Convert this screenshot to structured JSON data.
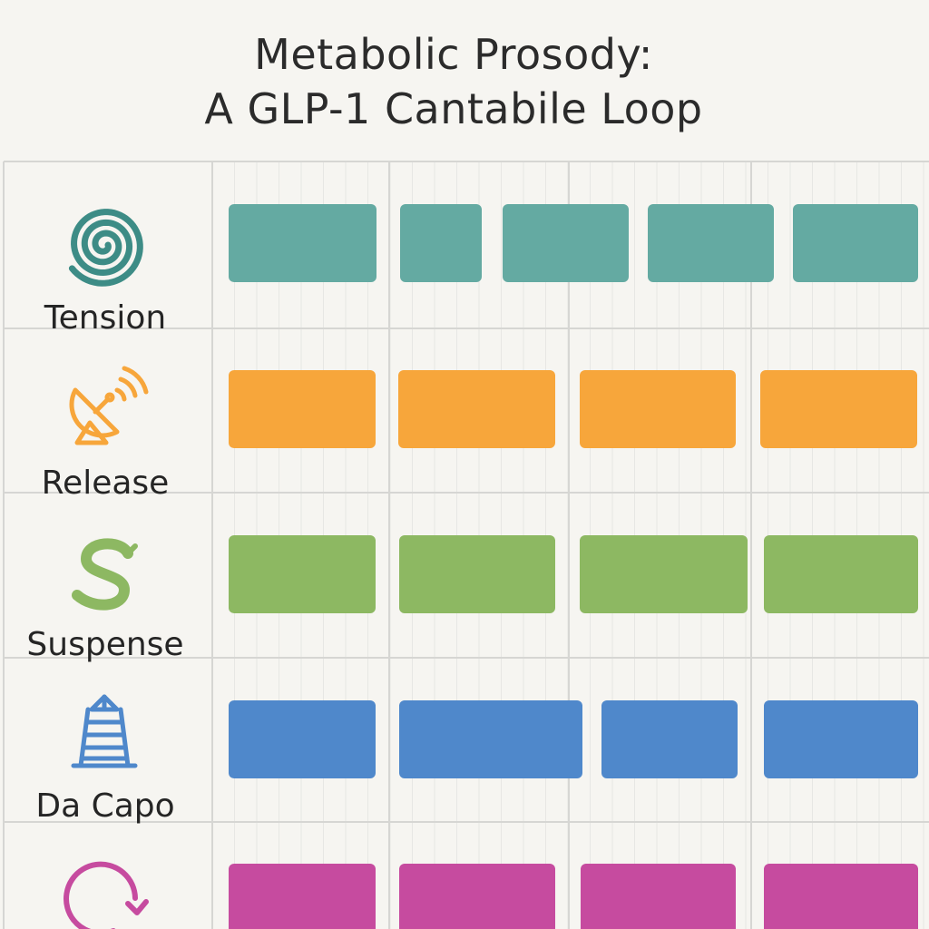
{
  "title": {
    "line1": "Metabolic Prosody:",
    "line2": "A GLP-1 Cantabile Loop"
  },
  "rows": [
    {
      "label": "Tension",
      "icon": "spiral-icon",
      "color": "#64aaa2",
      "blocks": 5
    },
    {
      "label": "Release",
      "icon": "satellite-dish-icon",
      "color": "#f7a63b",
      "blocks": 4
    },
    {
      "label": "Suspense",
      "icon": "s-curve-icon",
      "color": "#8db862",
      "blocks": 4
    },
    {
      "label": "Da Capo",
      "icon": "tower-icon",
      "color": "#4f88cb",
      "blocks": 4
    },
    {
      "label": "",
      "icon": "loop-arrow-icon",
      "color": "#c64b9f",
      "blocks": 4
    }
  ],
  "colors": {
    "background": "#f6f5f1",
    "grid_line": "#d6d6d3",
    "grid_line_light": "#e7e7e4",
    "text": "#2b2b2b"
  }
}
